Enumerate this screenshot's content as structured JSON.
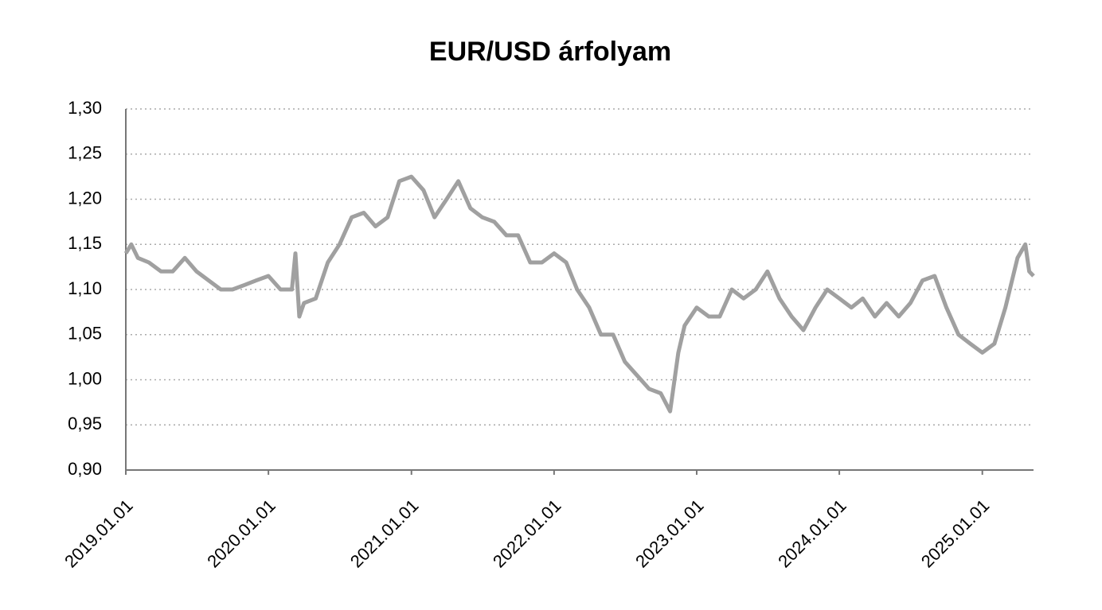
{
  "chart_data": {
    "type": "line",
    "title": "EUR/USD árfolyam",
    "color": "#a0a0a0",
    "grid": true,
    "xlim": [
      "2019.01.01",
      "2025.05.12"
    ],
    "xticks": [
      "2019.01.01",
      "2020.01.01",
      "2021.01.01",
      "2022.01.01",
      "2023.01.01",
      "2024.01.01",
      "2025.01.01"
    ],
    "ylim": [
      0.9,
      1.3
    ],
    "yticks": [
      {
        "value": 0.9,
        "label": "0,90"
      },
      {
        "value": 0.95,
        "label": "0,95"
      },
      {
        "value": 1.0,
        "label": "1,00"
      },
      {
        "value": 1.05,
        "label": "1,05"
      },
      {
        "value": 1.1,
        "label": "1,10"
      },
      {
        "value": 1.15,
        "label": "1,15"
      },
      {
        "value": 1.2,
        "label": "1,20"
      },
      {
        "value": 1.25,
        "label": "1,25"
      },
      {
        "value": 1.3,
        "label": "1,30"
      }
    ],
    "x": [
      "2019.01.01",
      "2019.01.15",
      "2019.02.01",
      "2019.03.01",
      "2019.04.01",
      "2019.05.01",
      "2019.06.01",
      "2019.07.01",
      "2019.08.01",
      "2019.09.01",
      "2019.10.01",
      "2019.11.01",
      "2019.12.01",
      "2020.01.01",
      "2020.02.01",
      "2020.03.01",
      "2020.03.10",
      "2020.03.20",
      "2020.04.01",
      "2020.05.01",
      "2020.06.01",
      "2020.07.01",
      "2020.08.01",
      "2020.09.01",
      "2020.10.01",
      "2020.11.01",
      "2020.12.01",
      "2021.01.01",
      "2021.02.01",
      "2021.03.01",
      "2021.04.01",
      "2021.05.01",
      "2021.06.01",
      "2021.07.01",
      "2021.08.01",
      "2021.09.01",
      "2021.10.01",
      "2021.11.01",
      "2021.12.01",
      "2022.01.01",
      "2022.02.01",
      "2022.03.01",
      "2022.04.01",
      "2022.05.01",
      "2022.06.01",
      "2022.07.01",
      "2022.08.01",
      "2022.09.01",
      "2022.10.01",
      "2022.10.25",
      "2022.11.15",
      "2022.12.01",
      "2023.01.01",
      "2023.02.01",
      "2023.03.01",
      "2023.04.01",
      "2023.05.01",
      "2023.06.01",
      "2023.07.01",
      "2023.08.01",
      "2023.09.01",
      "2023.10.01",
      "2023.11.01",
      "2023.12.01",
      "2024.01.01",
      "2024.02.01",
      "2024.03.01",
      "2024.04.01",
      "2024.05.01",
      "2024.06.01",
      "2024.07.01",
      "2024.08.01",
      "2024.09.01",
      "2024.10.01",
      "2024.11.01",
      "2024.12.01",
      "2025.01.01",
      "2025.02.01",
      "2025.03.01",
      "2025.04.01",
      "2025.04.21",
      "2025.05.01",
      "2025.05.12"
    ],
    "values": [
      1.14,
      1.15,
      1.135,
      1.13,
      1.12,
      1.12,
      1.135,
      1.12,
      1.11,
      1.1,
      1.1,
      1.105,
      1.11,
      1.115,
      1.1,
      1.1,
      1.14,
      1.07,
      1.085,
      1.09,
      1.13,
      1.15,
      1.18,
      1.185,
      1.17,
      1.18,
      1.22,
      1.225,
      1.21,
      1.18,
      1.2,
      1.22,
      1.19,
      1.18,
      1.175,
      1.16,
      1.16,
      1.13,
      1.13,
      1.14,
      1.13,
      1.1,
      1.08,
      1.05,
      1.05,
      1.02,
      1.005,
      0.99,
      0.985,
      0.965,
      1.03,
      1.06,
      1.08,
      1.07,
      1.07,
      1.1,
      1.09,
      1.1,
      1.12,
      1.09,
      1.07,
      1.055,
      1.08,
      1.1,
      1.09,
      1.08,
      1.09,
      1.07,
      1.085,
      1.07,
      1.085,
      1.11,
      1.115,
      1.08,
      1.05,
      1.04,
      1.03,
      1.04,
      1.08,
      1.135,
      1.15,
      1.12,
      1.115
    ]
  }
}
